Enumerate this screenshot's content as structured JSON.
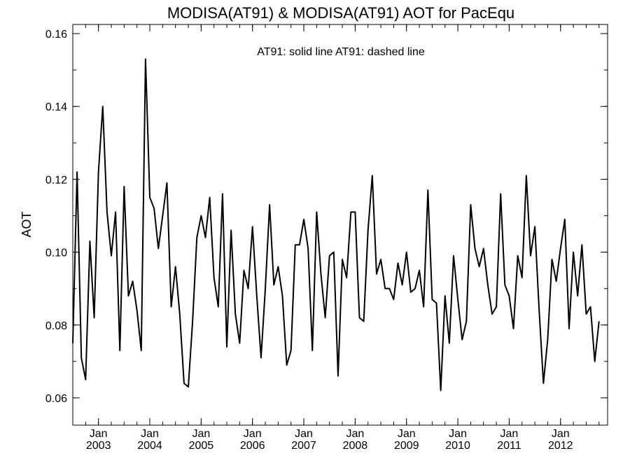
{
  "chart_data": {
    "type": "line",
    "title": "MODISA(AT91) & MODISA(AT91)  AOT for PacEqu",
    "legend_text": "AT91: solid line   AT91: dashed line",
    "ylabel": "AOT",
    "xlabel": "",
    "xlim": [
      2002.5,
      2012.9167
    ],
    "ylim": [
      0.0525,
      0.1625
    ],
    "yticks": [
      0.06,
      0.08,
      0.1,
      0.12,
      0.14,
      0.16
    ],
    "ytick_labels": [
      "0.06",
      "0.08",
      "0.10",
      "0.12",
      "0.14",
      "0.16"
    ],
    "xticks": [
      {
        "value": 2003.0,
        "month": "Jan",
        "year": "2003"
      },
      {
        "value": 2004.0,
        "month": "Jan",
        "year": "2004"
      },
      {
        "value": 2005.0,
        "month": "Jan",
        "year": "2005"
      },
      {
        "value": 2006.0,
        "month": "Jan",
        "year": "2006"
      },
      {
        "value": 2007.0,
        "month": "Jan",
        "year": "2007"
      },
      {
        "value": 2008.0,
        "month": "Jan",
        "year": "2008"
      },
      {
        "value": 2009.0,
        "month": "Jan",
        "year": "2009"
      },
      {
        "value": 2010.0,
        "month": "Jan",
        "year": "2010"
      },
      {
        "value": 2011.0,
        "month": "Jan",
        "year": "2011"
      },
      {
        "value": 2012.0,
        "month": "Jan",
        "year": "2012"
      }
    ],
    "grid": false,
    "series": [
      {
        "style": "solid",
        "color": "#000000",
        "start": 2002.5,
        "step_months": 1,
        "values": [
          0.075,
          0.122,
          0.071,
          0.065,
          0.103,
          0.082,
          0.122,
          0.14,
          0.111,
          0.099,
          0.111,
          0.073,
          0.118,
          0.088,
          0.092,
          0.084,
          0.073,
          0.153,
          0.115,
          0.112,
          0.101,
          0.11,
          0.119,
          0.085,
          0.096,
          0.083,
          0.064,
          0.063,
          0.081,
          0.104,
          0.11,
          0.104,
          0.115,
          0.093,
          0.085,
          0.116,
          0.074,
          0.106,
          0.083,
          0.075,
          0.095,
          0.09,
          0.107,
          0.088,
          0.071,
          0.09,
          0.113,
          0.091,
          0.096,
          0.088,
          0.069,
          0.073,
          0.102,
          0.102,
          0.109,
          0.101,
          0.073,
          0.111,
          0.094,
          0.082,
          0.099,
          0.1,
          0.066,
          0.098,
          0.093,
          0.111,
          0.111,
          0.082,
          0.081,
          0.106,
          0.121,
          0.094,
          0.098,
          0.09,
          0.09,
          0.087,
          0.097,
          0.091,
          0.1,
          0.089,
          0.09,
          0.095,
          0.085,
          0.117,
          0.087,
          0.086,
          0.062,
          0.088,
          0.075,
          0.099,
          0.087,
          0.076,
          0.081,
          0.113,
          0.101,
          0.096,
          0.101,
          0.091,
          0.083,
          0.085,
          0.116,
          0.091,
          0.088,
          0.079,
          0.099,
          0.093,
          0.121,
          0.099,
          0.107,
          0.084,
          0.064,
          0.076,
          0.098,
          0.092,
          0.101,
          0.109,
          0.079,
          0.1,
          0.088,
          0.102,
          0.083,
          0.085,
          0.07,
          0.081
        ]
      }
    ]
  }
}
